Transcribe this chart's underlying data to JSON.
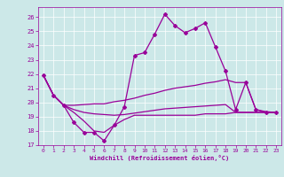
{
  "xlabel": "Windchill (Refroidissement éolien,°C)",
  "background_color": "#cce8e8",
  "grid_color": "#ffffff",
  "line_color": "#990099",
  "xlim": [
    -0.5,
    23.5
  ],
  "ylim": [
    17,
    26.7
  ],
  "yticks": [
    17,
    18,
    19,
    20,
    21,
    22,
    23,
    24,
    25,
    26
  ],
  "xticks": [
    0,
    1,
    2,
    3,
    4,
    5,
    6,
    7,
    8,
    9,
    10,
    11,
    12,
    13,
    14,
    15,
    16,
    17,
    18,
    19,
    20,
    21,
    22,
    23
  ],
  "line1_x": [
    0,
    1,
    2,
    3,
    4,
    5,
    6,
    7,
    8,
    9,
    10,
    11,
    12,
    13,
    14,
    15,
    16,
    17,
    18,
    19,
    20,
    21,
    22,
    23
  ],
  "line1_y": [
    21.9,
    20.5,
    19.8,
    18.6,
    17.9,
    17.9,
    17.3,
    18.4,
    19.7,
    23.3,
    23.5,
    24.8,
    26.2,
    25.4,
    24.9,
    25.2,
    25.6,
    23.9,
    22.2,
    19.5,
    21.4,
    19.5,
    19.3,
    19.3
  ],
  "line2_x": [
    0,
    1,
    2,
    3,
    4,
    5,
    6,
    7,
    8,
    9,
    10,
    11,
    12,
    13,
    14,
    15,
    16,
    17,
    18,
    19,
    20,
    21,
    22,
    23
  ],
  "line2_y": [
    21.9,
    20.5,
    19.8,
    19.8,
    19.85,
    19.9,
    19.9,
    20.05,
    20.15,
    20.3,
    20.5,
    20.65,
    20.85,
    21.0,
    21.1,
    21.2,
    21.35,
    21.45,
    21.6,
    21.4,
    21.4,
    19.5,
    19.35,
    19.3
  ],
  "line3_x": [
    0,
    1,
    2,
    3,
    4,
    5,
    6,
    7,
    8,
    9,
    10,
    11,
    12,
    13,
    14,
    15,
    16,
    17,
    18,
    19,
    20,
    21,
    22,
    23
  ],
  "line3_y": [
    21.9,
    20.5,
    19.8,
    19.5,
    19.3,
    19.2,
    19.15,
    19.1,
    19.15,
    19.25,
    19.35,
    19.45,
    19.55,
    19.6,
    19.65,
    19.7,
    19.75,
    19.8,
    19.85,
    19.3,
    19.3,
    19.3,
    19.3,
    19.3
  ],
  "line4_x": [
    0,
    1,
    2,
    3,
    4,
    5,
    6,
    7,
    8,
    9,
    10,
    11,
    12,
    13,
    14,
    15,
    16,
    17,
    18,
    19,
    20,
    21,
    22,
    23
  ],
  "line4_y": [
    21.9,
    20.5,
    19.8,
    19.3,
    18.7,
    18.0,
    17.9,
    18.4,
    18.8,
    19.1,
    19.1,
    19.1,
    19.1,
    19.1,
    19.1,
    19.1,
    19.2,
    19.2,
    19.2,
    19.3,
    19.3,
    19.3,
    19.3,
    19.3
  ]
}
